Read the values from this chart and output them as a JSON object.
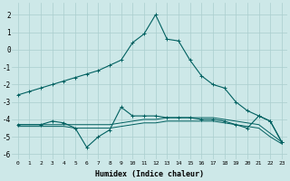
{
  "xlabel": "Humidex (Indice chaleur)",
  "xlim": [
    -0.5,
    23.5
  ],
  "ylim": [
    -6.3,
    2.7
  ],
  "yticks": [
    -6,
    -5,
    -4,
    -3,
    -2,
    -1,
    0,
    1,
    2
  ],
  "xticks": [
    0,
    1,
    2,
    3,
    4,
    5,
    6,
    7,
    8,
    9,
    10,
    11,
    12,
    13,
    14,
    15,
    16,
    17,
    18,
    19,
    20,
    21,
    22,
    23
  ],
  "background_color": "#cde8e8",
  "grid_color": "#aacece",
  "line_color": "#006060",
  "line1_x": [
    0,
    1,
    2,
    3,
    4,
    5,
    6,
    7,
    8,
    9,
    10,
    11,
    12,
    13,
    14,
    15,
    16,
    17,
    18,
    19,
    20,
    21,
    22,
    23
  ],
  "line1_y": [
    -2.6,
    -2.4,
    -2.2,
    -2.0,
    -1.8,
    -1.6,
    -1.4,
    -1.2,
    -0.9,
    -0.6,
    0.4,
    0.9,
    2.0,
    0.6,
    0.5,
    -0.6,
    -1.5,
    -2.0,
    -2.2,
    -3.0,
    -3.5,
    -3.8,
    -4.1,
    -5.3
  ],
  "line2_x": [
    0,
    2,
    3,
    4,
    5,
    6,
    7,
    8,
    9,
    10,
    11,
    12,
    13,
    14,
    15,
    16,
    17,
    18,
    19,
    20,
    21,
    22,
    23
  ],
  "line2_y": [
    -4.3,
    -4.3,
    -4.1,
    -4.2,
    -4.5,
    -5.6,
    -5.0,
    -4.6,
    -3.3,
    -3.8,
    -3.8,
    -3.8,
    -3.9,
    -3.9,
    -3.9,
    -4.0,
    -4.0,
    -4.1,
    -4.3,
    -4.5,
    -3.8,
    -4.1,
    -5.3
  ],
  "line3_x": [
    0,
    1,
    2,
    3,
    4,
    5,
    6,
    7,
    8,
    9,
    10,
    11,
    12,
    13,
    14,
    15,
    16,
    17,
    18,
    19,
    20,
    21,
    22,
    23
  ],
  "line3_y": [
    -4.3,
    -4.3,
    -4.3,
    -4.3,
    -4.3,
    -4.3,
    -4.3,
    -4.3,
    -4.3,
    -4.2,
    -4.1,
    -4.0,
    -4.0,
    -3.9,
    -3.9,
    -3.9,
    -3.9,
    -3.9,
    -4.0,
    -4.1,
    -4.2,
    -4.3,
    -4.8,
    -5.3
  ],
  "line4_x": [
    0,
    1,
    2,
    3,
    4,
    5,
    6,
    7,
    8,
    9,
    10,
    11,
    12,
    13,
    14,
    15,
    16,
    17,
    18,
    19,
    20,
    21,
    22,
    23
  ],
  "line4_y": [
    -4.4,
    -4.4,
    -4.4,
    -4.4,
    -4.4,
    -4.5,
    -4.5,
    -4.5,
    -4.5,
    -4.4,
    -4.3,
    -4.2,
    -4.2,
    -4.1,
    -4.1,
    -4.1,
    -4.1,
    -4.1,
    -4.2,
    -4.3,
    -4.4,
    -4.5,
    -5.0,
    -5.4
  ]
}
